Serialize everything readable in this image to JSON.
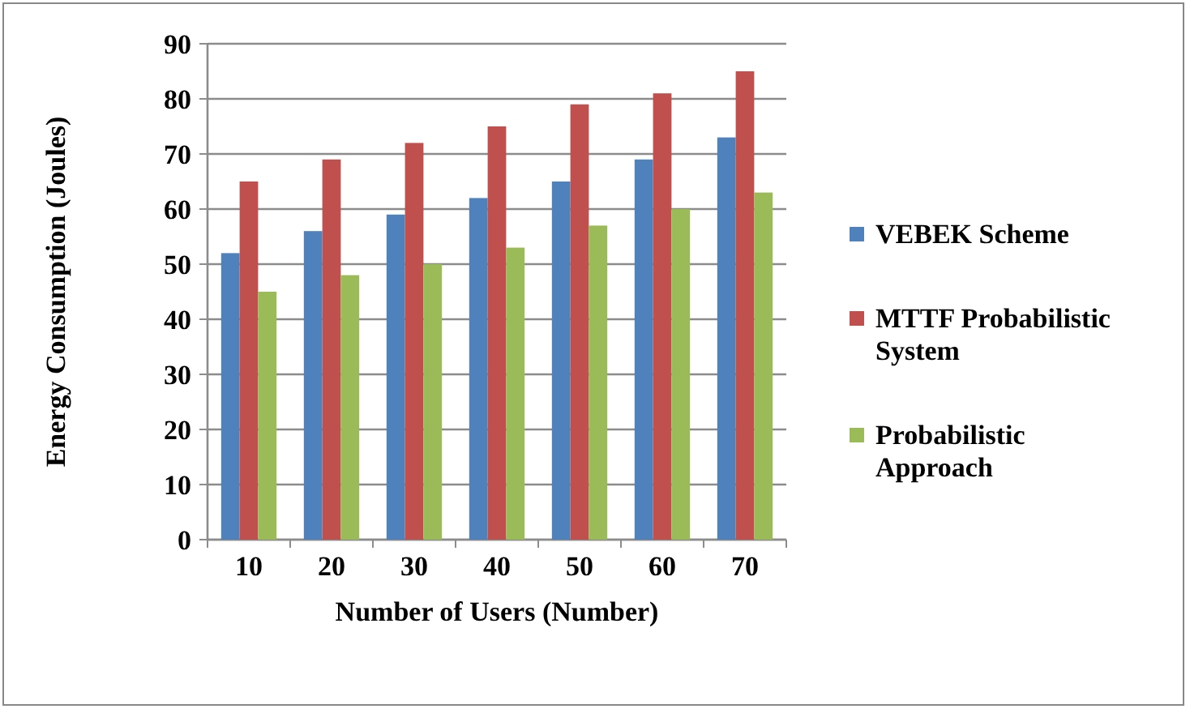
{
  "chart_data": {
    "type": "bar",
    "xlabel": "Number of Users (Number)",
    "ylabel": "Energy Consumption (Joules)",
    "categories": [
      "10",
      "20",
      "30",
      "40",
      "50",
      "60",
      "70"
    ],
    "series": [
      {
        "name": "VEBEK Scheme",
        "color": "#4f81bd",
        "values": [
          52,
          56,
          59,
          62,
          65,
          69,
          73
        ]
      },
      {
        "name": "MTTF Probabilistic System",
        "color": "#c0504d",
        "values": [
          65,
          69,
          72,
          75,
          79,
          81,
          85
        ]
      },
      {
        "name": "Probabilistic Approach",
        "color": "#9bbb59",
        "values": [
          45,
          48,
          50,
          53,
          57,
          60,
          63
        ]
      }
    ],
    "ylim": [
      0,
      90
    ],
    "yticks": [
      0,
      10,
      20,
      30,
      40,
      50,
      60,
      70,
      80,
      90
    ],
    "grid": "y",
    "legend": "right"
  }
}
